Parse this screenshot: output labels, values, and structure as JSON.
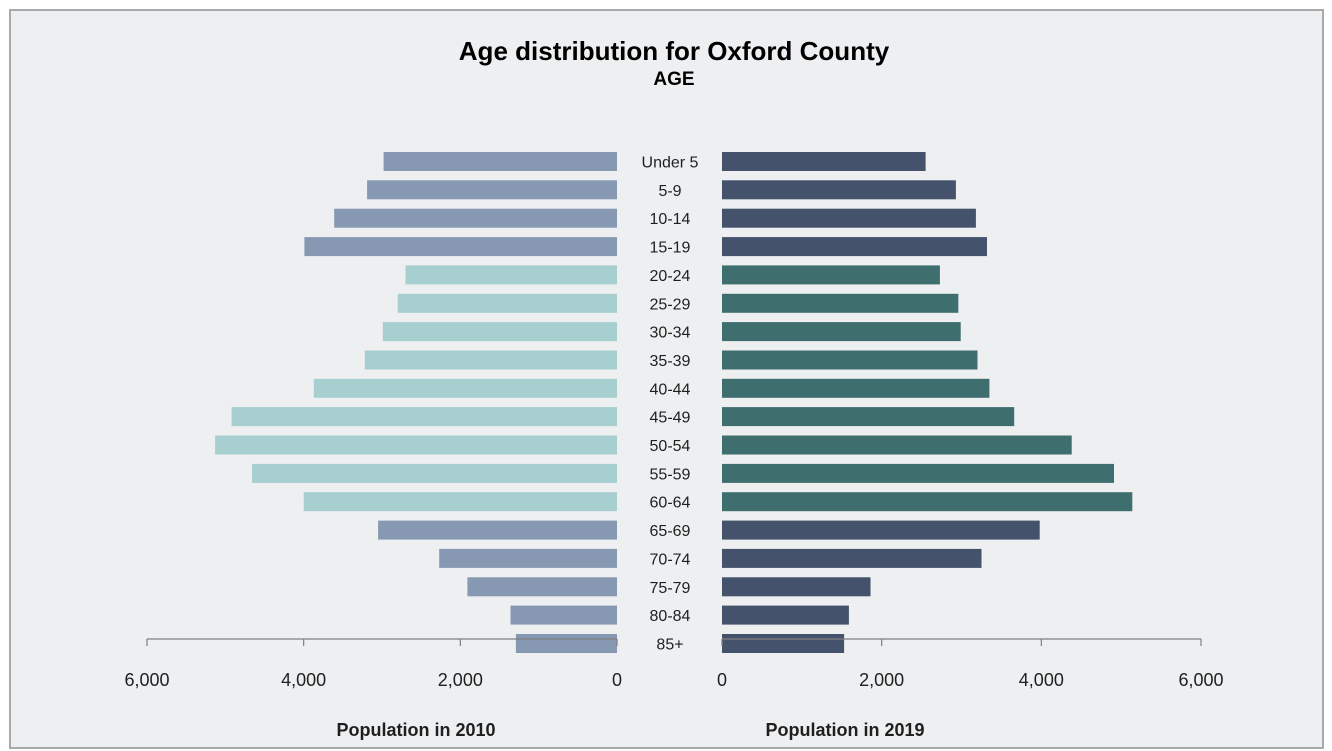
{
  "chart_data": {
    "type": "bar",
    "orientation": "horizontal",
    "layout": "population-pyramid",
    "title": "Age distribution for Oxford County",
    "subtitle": "AGE",
    "categories": [
      "Under 5",
      "5-9",
      "10-14",
      "15-19",
      "20-24",
      "25-29",
      "30-34",
      "35-39",
      "40-44",
      "45-49",
      "50-54",
      "55-59",
      "60-64",
      "65-69",
      "70-74",
      "75-79",
      "80-84",
      "85+"
    ],
    "series": [
      {
        "values": [
          2980,
          3190,
          3610,
          3990,
          2700,
          2800,
          2990,
          3220,
          3870,
          4920,
          5130,
          4660,
          4000,
          3050,
          2270,
          1910,
          1360,
          1290
        ]
      },
      {
        "values": [
          2550,
          2930,
          3180,
          3320,
          2730,
          2960,
          2990,
          3200,
          3350,
          3660,
          4380,
          4910,
          5140,
          3980,
          3250,
          1860,
          1590,
          1530
        ]
      }
    ],
    "left_axis": {
      "title": "Population in 2010",
      "range": [
        6000,
        0
      ],
      "ticks": [
        "6,000",
        "4,000",
        "2,000",
        "0"
      ]
    },
    "right_axis": {
      "title": "Population in 2019",
      "range": [
        0,
        6000
      ],
      "ticks": [
        "0",
        "2,000",
        "4,000",
        "6,000"
      ]
    },
    "grid": false,
    "legend": "none",
    "colors": {
      "left_outer_groups": "#8799b2",
      "left_working_age": "#a7cfd0",
      "right_outer_groups": "#44526c",
      "right_working_age": "#3f6e6e",
      "frame_background": "#edeff1",
      "frame_border": "#a7a9ab"
    }
  }
}
